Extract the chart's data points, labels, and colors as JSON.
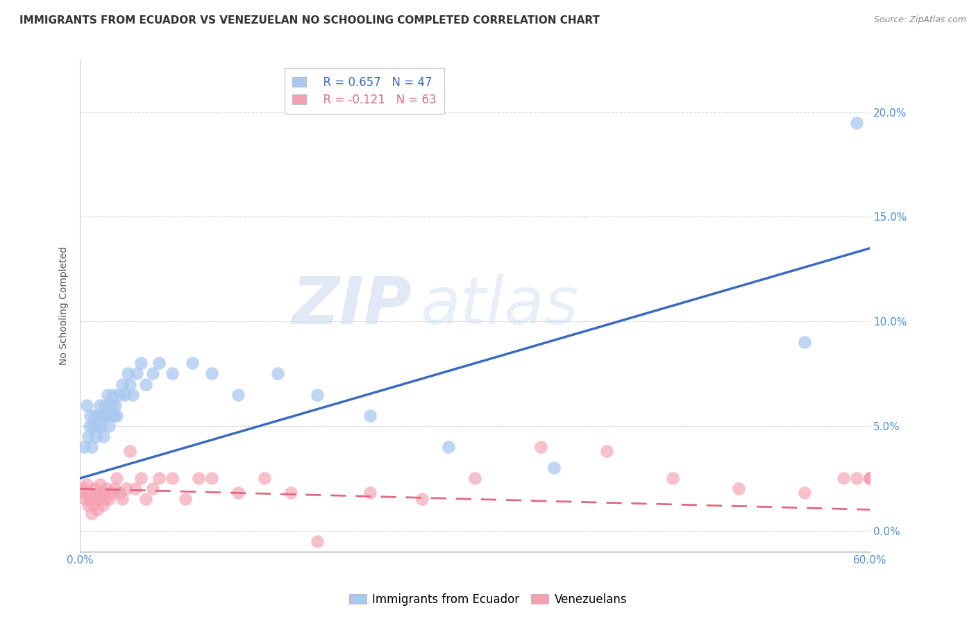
{
  "title": "IMMIGRANTS FROM ECUADOR VS VENEZUELAN NO SCHOOLING COMPLETED CORRELATION CHART",
  "source": "Source: ZipAtlas.com",
  "ylabel": "No Schooling Completed",
  "legend_blue_r": "R = 0.657",
  "legend_blue_n": "N = 47",
  "legend_pink_r": "R = -0.121",
  "legend_pink_n": "N = 63",
  "legend_blue_label": "Immigrants from Ecuador",
  "legend_pink_label": "Venezuelans",
  "xlim": [
    0.0,
    0.6
  ],
  "ylim": [
    -0.01,
    0.225
  ],
  "xtick_positions": [
    0.0,
    0.6
  ],
  "xtick_labels": [
    "0.0%",
    "60.0%"
  ],
  "yticks": [
    0.0,
    0.05,
    0.1,
    0.15,
    0.2
  ],
  "ytick_labels": [
    "0.0%",
    "5.0%",
    "10.0%",
    "15.0%",
    "20.0%"
  ],
  "blue_color": "#a8c8f0",
  "pink_color": "#f4a0b0",
  "blue_line_color": "#3a6bbf",
  "pink_line_color": "#e06880",
  "watermark_zip": "ZIP",
  "watermark_atlas": "atlas",
  "blue_points_x": [
    0.003,
    0.005,
    0.006,
    0.007,
    0.008,
    0.009,
    0.01,
    0.011,
    0.012,
    0.013,
    0.014,
    0.015,
    0.016,
    0.017,
    0.018,
    0.019,
    0.02,
    0.021,
    0.022,
    0.023,
    0.024,
    0.025,
    0.026,
    0.027,
    0.028,
    0.03,
    0.032,
    0.034,
    0.036,
    0.038,
    0.04,
    0.043,
    0.046,
    0.05,
    0.055,
    0.06,
    0.07,
    0.085,
    0.1,
    0.12,
    0.15,
    0.18,
    0.22,
    0.28,
    0.36,
    0.55,
    0.59
  ],
  "blue_points_y": [
    0.04,
    0.06,
    0.045,
    0.05,
    0.055,
    0.04,
    0.05,
    0.055,
    0.045,
    0.05,
    0.055,
    0.06,
    0.05,
    0.055,
    0.045,
    0.06,
    0.055,
    0.065,
    0.05,
    0.055,
    0.06,
    0.065,
    0.055,
    0.06,
    0.055,
    0.065,
    0.07,
    0.065,
    0.075,
    0.07,
    0.065,
    0.075,
    0.08,
    0.07,
    0.075,
    0.08,
    0.075,
    0.08,
    0.075,
    0.065,
    0.075,
    0.065,
    0.055,
    0.04,
    0.03,
    0.09,
    0.195
  ],
  "pink_points_x": [
    0.002,
    0.003,
    0.004,
    0.005,
    0.006,
    0.007,
    0.008,
    0.009,
    0.01,
    0.011,
    0.012,
    0.013,
    0.014,
    0.015,
    0.016,
    0.017,
    0.018,
    0.019,
    0.02,
    0.022,
    0.024,
    0.026,
    0.028,
    0.03,
    0.032,
    0.035,
    0.038,
    0.042,
    0.046,
    0.05,
    0.055,
    0.06,
    0.07,
    0.08,
    0.09,
    0.1,
    0.12,
    0.14,
    0.16,
    0.18,
    0.22,
    0.26,
    0.3,
    0.35,
    0.4,
    0.45,
    0.5,
    0.55,
    0.58,
    0.59,
    0.6,
    0.6,
    0.6
  ],
  "pink_points_y": [
    0.02,
    0.018,
    0.015,
    0.022,
    0.012,
    0.018,
    0.015,
    0.008,
    0.012,
    0.02,
    0.015,
    0.01,
    0.018,
    0.022,
    0.015,
    0.012,
    0.018,
    0.015,
    0.02,
    0.015,
    0.018,
    0.02,
    0.025,
    0.018,
    0.015,
    0.02,
    0.038,
    0.02,
    0.025,
    0.015,
    0.02,
    0.025,
    0.025,
    0.015,
    0.025,
    0.025,
    0.018,
    0.025,
    0.018,
    -0.005,
    0.018,
    0.015,
    0.025,
    0.04,
    0.038,
    0.025,
    0.02,
    0.018,
    0.025,
    0.025,
    0.025,
    0.025,
    0.025
  ],
  "blue_line_x0": 0.0,
  "blue_line_x1": 0.6,
  "blue_line_y0": 0.025,
  "blue_line_y1": 0.135,
  "pink_line_x0": 0.0,
  "pink_line_x1": 0.6,
  "pink_line_y0": 0.02,
  "pink_line_y1": 0.01,
  "grid_color": "#cccccc",
  "spine_color": "#cccccc",
  "tick_color": "#4a90d9",
  "title_fontsize": 11,
  "source_fontsize": 9,
  "tick_fontsize": 11
}
